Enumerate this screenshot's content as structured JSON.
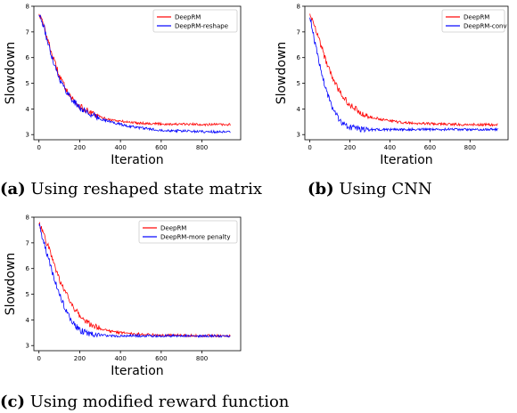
{
  "chart_data": [
    {
      "type": "line",
      "xlabel": "Iteration",
      "ylabel": "Slowdown",
      "xlim": [
        -25,
        990
      ],
      "ylim": [
        2.8,
        8.0
      ],
      "xticks": [
        0,
        200,
        400,
        600,
        800
      ],
      "yticks": [
        3,
        4,
        5,
        6,
        7,
        8
      ],
      "legend_position": "top-right",
      "grid": false,
      "series": [
        {
          "name": "DeepRM",
          "color": "#ff0000",
          "x": [
            0,
            25,
            50,
            75,
            100,
            125,
            150,
            175,
            200,
            250,
            300,
            350,
            400,
            450,
            500,
            550,
            600,
            650,
            700,
            750,
            800,
            850,
            900,
            940
          ],
          "values": [
            7.75,
            7.2,
            6.5,
            5.85,
            5.3,
            4.9,
            4.55,
            4.3,
            4.1,
            3.85,
            3.68,
            3.58,
            3.52,
            3.48,
            3.45,
            3.43,
            3.42,
            3.41,
            3.4,
            3.4,
            3.4,
            3.39,
            3.39,
            3.38
          ]
        },
        {
          "name": "DeepRM-reshape",
          "color": "#0000ff",
          "x": [
            0,
            25,
            50,
            75,
            100,
            125,
            150,
            175,
            200,
            250,
            300,
            350,
            400,
            450,
            500,
            550,
            600,
            650,
            700,
            750,
            800,
            850,
            900,
            940
          ],
          "values": [
            7.7,
            7.15,
            6.4,
            5.75,
            5.2,
            4.8,
            4.5,
            4.25,
            4.05,
            3.8,
            3.62,
            3.5,
            3.4,
            3.32,
            3.26,
            3.21,
            3.18,
            3.16,
            3.14,
            3.13,
            3.12,
            3.11,
            3.1,
            3.1
          ]
        }
      ],
      "caption_letter": "(a)",
      "caption_text": " Using reshaped state matrix"
    },
    {
      "type": "line",
      "xlabel": "Iteration",
      "ylabel": "Slowdown",
      "xlim": [
        -25,
        990
      ],
      "ylim": [
        2.8,
        8.0
      ],
      "xticks": [
        0,
        200,
        400,
        600,
        800
      ],
      "yticks": [
        3,
        4,
        5,
        6,
        7,
        8
      ],
      "legend_position": "top-right",
      "grid": false,
      "series": [
        {
          "name": "DeepRM",
          "color": "#ff0000",
          "x": [
            0,
            25,
            50,
            75,
            100,
            125,
            150,
            175,
            200,
            250,
            300,
            350,
            400,
            450,
            500,
            550,
            600,
            650,
            700,
            750,
            800,
            850,
            900,
            940
          ],
          "values": [
            7.75,
            7.2,
            6.6,
            6.0,
            5.45,
            5.0,
            4.65,
            4.38,
            4.15,
            3.88,
            3.7,
            3.6,
            3.53,
            3.48,
            3.45,
            3.43,
            3.42,
            3.41,
            3.4,
            3.4,
            3.4,
            3.39,
            3.39,
            3.38
          ]
        },
        {
          "name": "DeepRM-conv",
          "color": "#0000ff",
          "x": [
            0,
            25,
            50,
            75,
            100,
            125,
            150,
            175,
            200,
            250,
            300,
            350,
            400,
            450,
            500,
            550,
            600,
            650,
            700,
            750,
            800,
            850,
            900,
            940
          ],
          "values": [
            7.6,
            6.6,
            5.7,
            4.9,
            4.3,
            3.85,
            3.55,
            3.38,
            3.28,
            3.22,
            3.2,
            3.19,
            3.19,
            3.2,
            3.2,
            3.21,
            3.2,
            3.2,
            3.21,
            3.2,
            3.2,
            3.2,
            3.2,
            3.2
          ]
        }
      ],
      "caption_letter": "(b)",
      "caption_text": " Using CNN"
    },
    {
      "type": "line",
      "xlabel": "Iteration",
      "ylabel": "Slowdown",
      "xlim": [
        -25,
        990
      ],
      "ylim": [
        2.8,
        8.0
      ],
      "xticks": [
        0,
        200,
        400,
        600,
        800
      ],
      "yticks": [
        3,
        4,
        5,
        6,
        7,
        8
      ],
      "legend_position": "top-right",
      "grid": false,
      "series": [
        {
          "name": "DeepRM",
          "color": "#ff0000",
          "x": [
            0,
            25,
            50,
            75,
            100,
            125,
            150,
            175,
            200,
            250,
            300,
            350,
            400,
            450,
            500,
            550,
            600,
            650,
            700,
            750,
            800,
            850,
            900,
            940
          ],
          "values": [
            7.75,
            7.3,
            6.75,
            6.15,
            5.6,
            5.15,
            4.75,
            4.42,
            4.15,
            3.82,
            3.65,
            3.56,
            3.5,
            3.47,
            3.44,
            3.42,
            3.41,
            3.4,
            3.4,
            3.39,
            3.39,
            3.38,
            3.38,
            3.38
          ]
        },
        {
          "name": "DeepRM-more penalty",
          "color": "#0000ff",
          "x": [
            0,
            25,
            50,
            75,
            100,
            125,
            150,
            175,
            200,
            250,
            300,
            350,
            400,
            450,
            500,
            550,
            600,
            650,
            700,
            750,
            800,
            850,
            900,
            940
          ],
          "values": [
            7.7,
            7.0,
            6.3,
            5.6,
            5.0,
            4.5,
            4.1,
            3.8,
            3.6,
            3.45,
            3.4,
            3.38,
            3.38,
            3.38,
            3.38,
            3.38,
            3.38,
            3.38,
            3.38,
            3.38,
            3.37,
            3.37,
            3.37,
            3.37
          ]
        }
      ],
      "caption_letter": "(c)",
      "caption_text": " Using modified reward function"
    }
  ]
}
